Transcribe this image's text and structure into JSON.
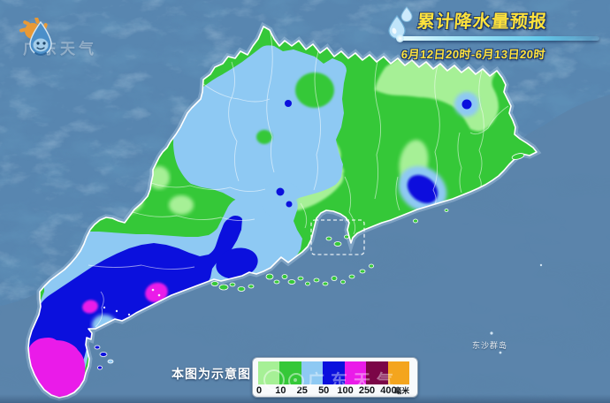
{
  "header": {
    "logo_text": "广东天气",
    "title": "累计降水量预报",
    "date_range": "6月12日20时-6月13日20时"
  },
  "map": {
    "region": "广东省",
    "island_label": "东沙群岛",
    "note": "本图为示意图",
    "watermark": "广东天气"
  },
  "legend": {
    "unit": "毫米",
    "stops": [
      {
        "label": "0",
        "color": "#a6f096"
      },
      {
        "label": "10",
        "color": "#35c838"
      },
      {
        "label": "25",
        "color": "#8ec9f3"
      },
      {
        "label": "50",
        "color": "#0b10dd"
      },
      {
        "label": "100",
        "color": "#ea1be9"
      },
      {
        "label": "250",
        "color": "#7b0647"
      },
      {
        "label": "400",
        "color": "#f4a51e"
      }
    ]
  },
  "palette": {
    "ocean": "#4a739f",
    "neighbor_land": "#5886b0",
    "rain_0_10": "#a6f096",
    "rain_10_25": "#35c838",
    "rain_25_50": "#8ec9f3",
    "rain_50_100": "#0b10dd",
    "rain_100_250": "#ea1be9",
    "rain_250_400": "#7b0647",
    "rain_400": "#f4a51e",
    "border_white": "#ffffff",
    "title_yellow": "#ffe23c",
    "title_outline": "#1c3a70",
    "divider_cyan": "#aee9fa"
  }
}
